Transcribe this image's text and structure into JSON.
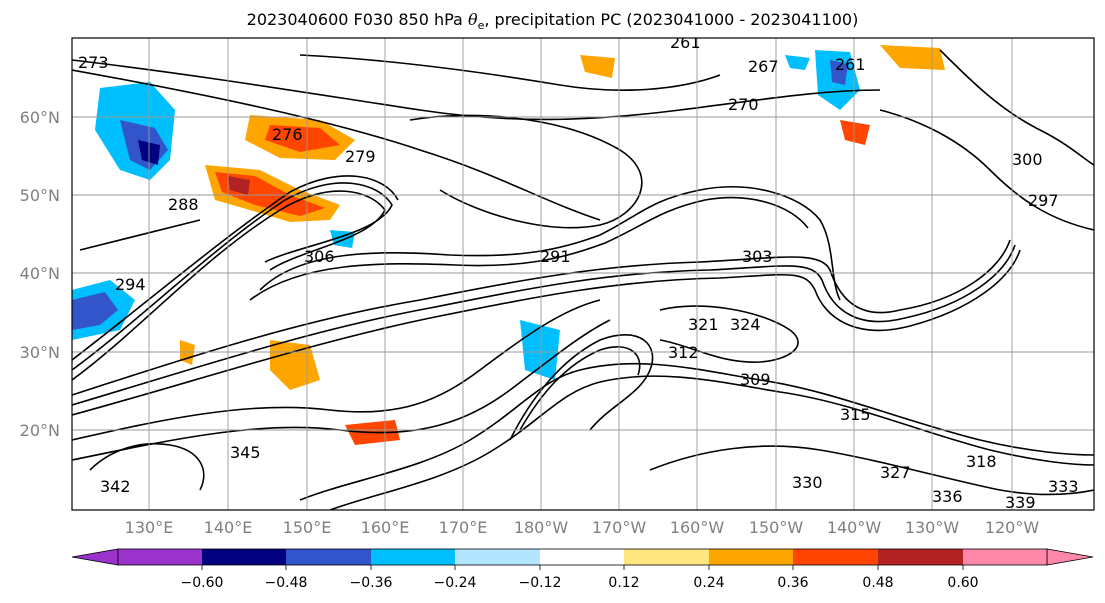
{
  "title": {
    "pre": "2023040600 F030 850 hPa ",
    "theta": "θ",
    "sub": "e",
    "post": ", precipitation PC (2023041000 - 2023041100)"
  },
  "map": {
    "lat_labels": [
      "60°N",
      "50°N",
      "40°N",
      "30°N",
      "20°N"
    ],
    "lon_labels": [
      "130°E",
      "140°E",
      "150°E",
      "160°E",
      "170°E",
      "180°W",
      "170°W",
      "160°W",
      "150°W",
      "140°W",
      "130°W",
      "120°W"
    ],
    "contour_labels": [
      "273",
      "261",
      "267",
      "261",
      "276",
      "279",
      "270",
      "288",
      "291",
      "294",
      "297",
      "300",
      "303",
      "306",
      "309",
      "312",
      "315",
      "318",
      "321",
      "324",
      "327",
      "330",
      "333",
      "336",
      "339",
      "342",
      "345"
    ]
  },
  "colorbar": {
    "ticks": [
      "−0.60",
      "−0.48",
      "−0.36",
      "−0.24",
      "−0.12",
      "0.12",
      "0.24",
      "0.36",
      "0.48",
      "0.60"
    ],
    "colors": [
      "#9933cc",
      "#000080",
      "#3355cc",
      "#00bfff",
      "#b3e5ff",
      "#ffffff",
      "#ffe680",
      "#ffa500",
      "#ff4500",
      "#b22222",
      "#ff88aa"
    ]
  }
}
